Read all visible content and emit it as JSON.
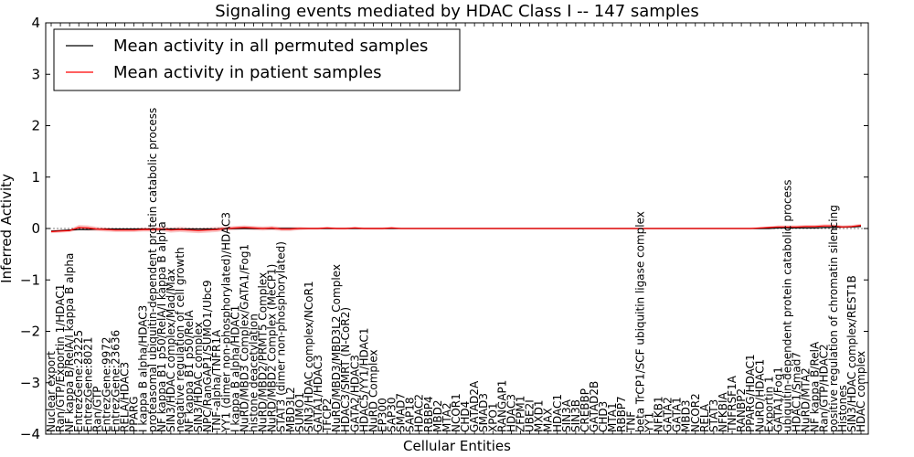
{
  "chart_data": {
    "type": "line",
    "title": "Signaling events mediated by HDAC Class I -- 147 samples",
    "xlabel": "Cellular Entities",
    "ylabel": "Inferred Activity",
    "ylim": [
      -4,
      4
    ],
    "yticks": [
      -4,
      -3,
      -2,
      -1,
      0,
      1,
      2,
      3,
      4
    ],
    "legend": {
      "placement": "top-left",
      "entries": [
        {
          "label": "Mean activity in all permuted samples",
          "color": "#000000"
        },
        {
          "label": "Mean activity in patient samples",
          "color": "#ff0000"
        }
      ]
    },
    "categories": [
      "Nuclear export",
      "Ran/GTP/Exportin 1/HDAC1",
      "NF kappa B/RelA/I kappa B alpha",
      "EntrezGene:23225",
      "EntrezGene:8021",
      "Ran/GTP",
      "EntrezGene:9972",
      "EntrezGene:23636",
      "RELA/HDAC3",
      "PPARG",
      "I kappa B alpha/HDAC3",
      "proteasomal ubiquitin-dependent protein catabolic process",
      "NF kappa B1 p50/RelA/I kappa B alpha",
      "SIN3/HDAC complex/Mad/Max",
      "negative regulation of cell growth",
      "NF kappa B1 p50/RelA",
      "SIN3/HDAC complex",
      "NPC/RanGAP1/SUMO1/Ubc9",
      "TNF-alpha/TNFR1A",
      "YY1 (dimer non-phosphorylated)/HDAC3",
      "I kappa B alpha/HDAC1",
      "NuRD/MBD3 Complex/GATA1/Fog1",
      "histone deacetylation",
      "NuRD/MBD2/PRMT5 Complex",
      "NuRD/MBD2 Complex (MeCP1)",
      "STAT3 (dimer non-phosphorylated)",
      "MBD3L2",
      "SUMO1",
      "SIN3/HDAC complex/NCoR1",
      "GATA1/HDAC3",
      "TFCP2",
      "NuRD/MBD3/MBD3L2 Complex",
      "HDAC3/SMRT (N-CoR2)",
      "GATA2/HDAC3",
      "HDAC5/YY1/HDAC1",
      "NuRD Complex",
      "EP300",
      "SAP30",
      "SMAD7",
      "SAP18",
      "HDAC2",
      "RBBP4",
      "MBD2",
      "MTA2",
      "NCOR1",
      "CHD4",
      "GATAD2A",
      "SMAD3",
      "XPO1",
      "RANGAP1",
      "HDAC3",
      "ZFPM1",
      "UBE2I",
      "MXD1",
      "MAX",
      "HDAC1",
      "SIN3A",
      "SIN3B",
      "CREBBP",
      "GATAD2B",
      "CHD3",
      "MTA1",
      "RBBP7",
      "TNF",
      "beta TrCP1/SCF ubiquitin ligase complex",
      "YY1",
      "NFKB1",
      "GATA2",
      "GATA1",
      "MBD3",
      "NCOR2",
      "RELA",
      "STAT3",
      "NFKBIA",
      "TNFRSF1A",
      "RANBP2",
      "PPARG/HDAC1",
      "NuRD/HDAC1",
      "Exportin 1",
      "GATA1/Fog1",
      "ubiquitin-dependent protein catabolic process",
      "HDAC1/Smad7",
      "NuRD/MTA2",
      "NF kappa B/RelA",
      "Ran/GTP/HDAC2",
      "positive regulation of chromatin silencing",
      "Histones",
      "SIN3/HDAC complex/REST1B",
      "HDAC complex"
    ],
    "series": [
      {
        "name": "Mean activity in all permuted samples",
        "color": "#000000",
        "values": [
          -0.05,
          -0.04,
          -0.03,
          -0.02,
          -0.02,
          -0.01,
          -0.01,
          -0.01,
          -0.01,
          -0.01,
          -0.01,
          -0.01,
          -0.01,
          -0.01,
          -0.01,
          -0.01,
          -0.01,
          -0.01,
          -0.01,
          0.0,
          0.0,
          0.0,
          0.0,
          0.0,
          0.0,
          0.0,
          0.0,
          0.0,
          0.0,
          0.0,
          0.0,
          0.0,
          0.0,
          0.0,
          0.0,
          0.0,
          0.0,
          0.0,
          0.0,
          0.0,
          0.0,
          0.0,
          0.0,
          0.0,
          0.0,
          0.0,
          0.0,
          0.0,
          0.0,
          0.0,
          0.0,
          0.0,
          0.0,
          0.0,
          0.0,
          0.0,
          0.0,
          0.0,
          0.0,
          0.0,
          0.0,
          0.0,
          0.0,
          0.0,
          0.0,
          0.0,
          0.0,
          0.0,
          0.0,
          0.0,
          0.0,
          0.0,
          0.0,
          0.0,
          0.0,
          0.0,
          0.0,
          0.0,
          0.0,
          0.01,
          0.01,
          0.01,
          0.01,
          0.01,
          0.02,
          0.02,
          0.03,
          0.03,
          0.04
        ]
      },
      {
        "name": "Mean activity in patient samples",
        "color": "#ff0000",
        "values": [
          -0.06,
          -0.05,
          -0.04,
          0.02,
          0.01,
          -0.01,
          -0.02,
          -0.03,
          -0.03,
          -0.03,
          -0.02,
          -0.02,
          -0.01,
          -0.03,
          -0.02,
          -0.03,
          -0.04,
          -0.03,
          -0.02,
          0.0,
          0.01,
          0.02,
          0.01,
          0.0,
          0.01,
          -0.01,
          -0.01,
          0.0,
          0.0,
          0.0,
          0.01,
          0.0,
          0.0,
          0.01,
          0.0,
          0.0,
          0.0,
          0.01,
          0.0,
          0.0,
          0.0,
          0.0,
          0.0,
          0.0,
          0.0,
          0.0,
          0.0,
          0.0,
          0.0,
          0.0,
          0.0,
          0.0,
          0.0,
          0.0,
          0.0,
          0.0,
          0.0,
          0.0,
          0.0,
          0.0,
          0.0,
          0.0,
          0.0,
          0.0,
          0.0,
          0.0,
          0.0,
          0.0,
          0.0,
          0.0,
          0.0,
          0.0,
          0.0,
          0.0,
          0.0,
          0.0,
          0.0,
          0.01,
          0.02,
          0.03,
          0.03,
          0.03,
          0.04,
          0.04,
          0.05,
          0.05,
          0.03,
          0.04,
          0.06
        ]
      }
    ],
    "bands": {
      "permuted": {
        "color": "#c8c8c8",
        "lower": [
          -0.06,
          -0.05,
          -0.04,
          -0.03,
          -0.03,
          -0.02,
          -0.02,
          -0.02,
          -0.02,
          -0.02,
          -0.02,
          -0.02,
          -0.02,
          -0.02,
          -0.02,
          -0.02,
          -0.02,
          -0.02,
          -0.02,
          -0.01,
          -0.01,
          -0.01,
          -0.01,
          -0.01,
          -0.01,
          -0.01,
          -0.01,
          -0.01,
          -0.01,
          -0.01,
          -0.01,
          -0.01,
          -0.01,
          -0.01,
          -0.01,
          -0.01,
          -0.01,
          -0.01,
          -0.01,
          -0.01,
          -0.01,
          -0.01,
          -0.01,
          -0.01,
          -0.01,
          -0.01,
          -0.01,
          -0.01,
          -0.01,
          -0.01,
          -0.01,
          -0.01,
          -0.01,
          -0.01,
          -0.01,
          -0.01,
          -0.01,
          -0.01,
          -0.01,
          -0.01,
          -0.01,
          -0.01,
          -0.01,
          -0.01,
          -0.01,
          -0.01,
          -0.01,
          -0.01,
          -0.01,
          -0.01,
          -0.01,
          -0.01,
          -0.01,
          -0.01,
          -0.01,
          -0.01,
          -0.01,
          -0.01,
          -0.01,
          0.0,
          0.0,
          0.0,
          0.0,
          0.0,
          0.01,
          0.01,
          0.02,
          0.02,
          0.03
        ],
        "upper": [
          -0.04,
          -0.03,
          -0.02,
          -0.01,
          -0.01,
          0.0,
          0.0,
          0.0,
          0.0,
          0.0,
          0.0,
          0.0,
          0.0,
          0.0,
          0.0,
          0.0,
          0.0,
          0.0,
          0.0,
          0.01,
          0.01,
          0.01,
          0.01,
          0.01,
          0.01,
          0.01,
          0.01,
          0.01,
          0.01,
          0.01,
          0.01,
          0.01,
          0.01,
          0.01,
          0.01,
          0.01,
          0.01,
          0.01,
          0.01,
          0.01,
          0.01,
          0.01,
          0.01,
          0.01,
          0.01,
          0.01,
          0.01,
          0.01,
          0.01,
          0.01,
          0.01,
          0.01,
          0.01,
          0.01,
          0.01,
          0.01,
          0.01,
          0.01,
          0.01,
          0.01,
          0.01,
          0.01,
          0.01,
          0.01,
          0.01,
          0.01,
          0.01,
          0.01,
          0.01,
          0.01,
          0.01,
          0.01,
          0.01,
          0.01,
          0.01,
          0.01,
          0.01,
          0.01,
          0.01,
          0.02,
          0.02,
          0.02,
          0.02,
          0.02,
          0.03,
          0.03,
          0.04,
          0.04,
          0.05
        ]
      },
      "patient": {
        "color": "#f4a0a0",
        "lower": [
          -0.09,
          -0.08,
          -0.07,
          -0.03,
          -0.04,
          -0.05,
          -0.06,
          -0.07,
          -0.07,
          -0.07,
          -0.06,
          -0.06,
          -0.05,
          -0.08,
          -0.07,
          -0.08,
          -0.09,
          -0.08,
          -0.07,
          -0.04,
          -0.03,
          -0.02,
          -0.03,
          -0.04,
          -0.03,
          -0.05,
          -0.05,
          -0.03,
          -0.02,
          -0.02,
          -0.01,
          -0.02,
          -0.02,
          -0.01,
          -0.02,
          -0.02,
          -0.02,
          -0.01,
          -0.01,
          -0.01,
          -0.01,
          -0.01,
          -0.01,
          -0.01,
          -0.01,
          -0.01,
          -0.01,
          -0.01,
          -0.01,
          -0.01,
          -0.01,
          -0.01,
          -0.01,
          -0.01,
          -0.01,
          -0.01,
          -0.01,
          -0.01,
          -0.01,
          -0.01,
          -0.01,
          -0.01,
          -0.01,
          -0.01,
          -0.01,
          -0.01,
          -0.01,
          -0.01,
          -0.01,
          -0.01,
          -0.01,
          -0.01,
          -0.01,
          -0.01,
          -0.01,
          -0.01,
          -0.01,
          -0.01,
          0.0,
          0.0,
          0.0,
          0.0,
          0.01,
          0.01,
          0.02,
          0.02,
          0.0,
          0.01,
          0.03
        ],
        "upper": [
          -0.03,
          -0.02,
          -0.01,
          0.07,
          0.06,
          0.03,
          0.02,
          0.01,
          0.01,
          0.01,
          0.02,
          0.02,
          0.03,
          0.02,
          0.03,
          0.02,
          0.01,
          0.02,
          0.03,
          0.04,
          0.05,
          0.06,
          0.05,
          0.04,
          0.05,
          0.03,
          0.03,
          0.03,
          0.02,
          0.02,
          0.03,
          0.02,
          0.02,
          0.03,
          0.02,
          0.02,
          0.02,
          0.03,
          0.01,
          0.01,
          0.01,
          0.01,
          0.01,
          0.01,
          0.01,
          0.01,
          0.01,
          0.01,
          0.01,
          0.01,
          0.01,
          0.01,
          0.01,
          0.01,
          0.01,
          0.01,
          0.01,
          0.01,
          0.01,
          0.01,
          0.01,
          0.01,
          0.01,
          0.01,
          0.01,
          0.01,
          0.01,
          0.01,
          0.01,
          0.01,
          0.01,
          0.01,
          0.01,
          0.01,
          0.01,
          0.01,
          0.01,
          0.02,
          0.04,
          0.06,
          0.06,
          0.06,
          0.07,
          0.07,
          0.08,
          0.08,
          0.06,
          0.07,
          0.09
        ]
      }
    }
  }
}
